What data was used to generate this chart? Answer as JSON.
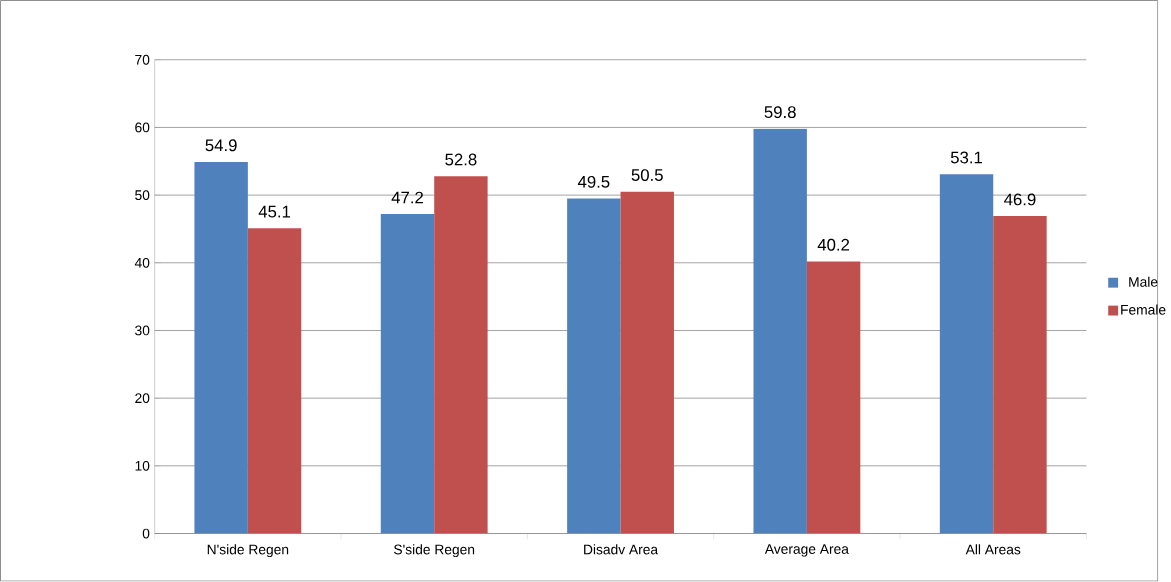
{
  "chart_data": {
    "type": "bar",
    "categories": [
      "N'side Regen",
      "S'side Regen",
      "Disadv Area",
      "Average Area",
      "All Areas"
    ],
    "series": [
      {
        "name": "Male",
        "color": "#4f81bd",
        "values": [
          54.9,
          47.2,
          49.5,
          59.8,
          53.1
        ]
      },
      {
        "name": "Female",
        "color": "#c0504d",
        "values": [
          45.1,
          52.8,
          50.5,
          40.2,
          46.9
        ]
      }
    ],
    "ylim": [
      0,
      70
    ],
    "yticks": [
      0,
      10,
      20,
      30,
      40,
      50,
      60,
      70
    ],
    "grid": "y",
    "legend": "right",
    "data_labels": true
  }
}
